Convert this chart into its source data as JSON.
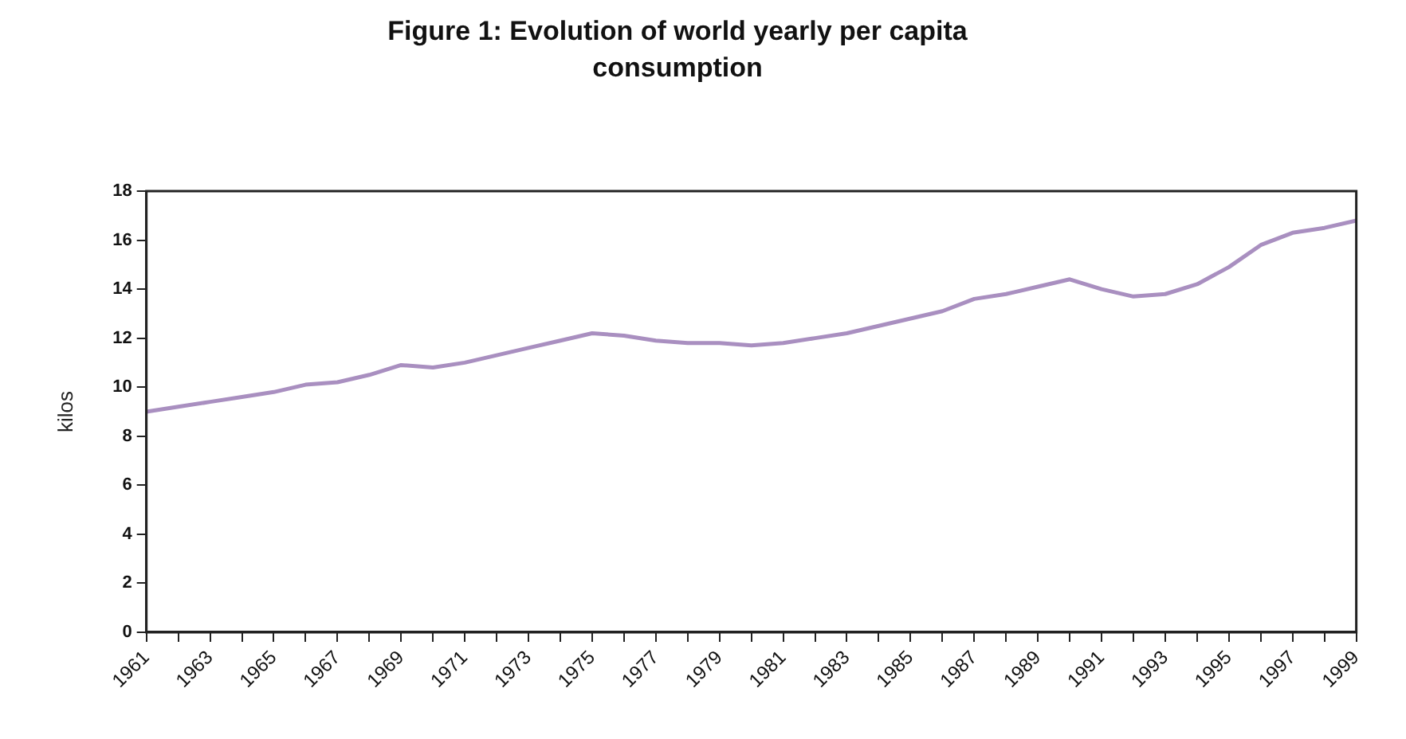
{
  "chart_data": {
    "type": "line",
    "title": "Figure 1: Evolution of world yearly per capita consumption",
    "ylabel": "kilos",
    "x": [
      1961,
      1962,
      1963,
      1964,
      1965,
      1966,
      1967,
      1968,
      1969,
      1970,
      1971,
      1972,
      1973,
      1974,
      1975,
      1976,
      1977,
      1978,
      1979,
      1980,
      1981,
      1982,
      1983,
      1984,
      1985,
      1986,
      1987,
      1988,
      1989,
      1990,
      1991,
      1992,
      1993,
      1994,
      1995,
      1996,
      1997,
      1998,
      1999
    ],
    "series": [
      {
        "color": "#a98fc0",
        "values": [
          9.0,
          9.2,
          9.4,
          9.6,
          9.8,
          10.1,
          10.2,
          10.5,
          10.9,
          10.8,
          11.0,
          11.3,
          11.6,
          11.9,
          12.2,
          12.1,
          11.9,
          11.8,
          11.8,
          11.7,
          11.8,
          12.0,
          12.2,
          12.5,
          12.8,
          13.1,
          13.6,
          13.8,
          14.1,
          14.4,
          14.0,
          13.7,
          13.8,
          14.2,
          14.9,
          15.8,
          16.3,
          16.5,
          16.8
        ]
      }
    ],
    "xlim": [
      1961,
      1999
    ],
    "xticks": [
      1961,
      {
        "value": 1962,
        "label": null
      },
      1963,
      {
        "value": 1964,
        "label": null
      },
      1965,
      {
        "value": 1966,
        "label": null
      },
      1967,
      {
        "value": 1968,
        "label": null
      },
      1969,
      {
        "value": 1970,
        "label": null
      },
      1971,
      {
        "value": 1972,
        "label": null
      },
      1973,
      {
        "value": 1974,
        "label": null
      },
      1975,
      {
        "value": 1976,
        "label": null
      },
      1977,
      {
        "value": 1978,
        "label": null
      },
      1979,
      {
        "value": 1980,
        "label": null
      },
      1981,
      {
        "value": 1982,
        "label": null
      },
      1983,
      {
        "value": 1984,
        "label": null
      },
      1985,
      {
        "value": 1986,
        "label": null
      },
      1987,
      {
        "value": 1988,
        "label": null
      },
      1989,
      {
        "value": 1990,
        "label": null
      },
      1991,
      {
        "value": 1992,
        "label": null
      },
      1993,
      {
        "value": 1994,
        "label": null
      },
      1995,
      {
        "value": 1996,
        "label": null
      },
      1997,
      {
        "value": 1998,
        "label": null
      },
      1999
    ],
    "ylim": [
      0,
      18
    ],
    "yticks": [
      0,
      2,
      4,
      6,
      8,
      10,
      12,
      14,
      16,
      18
    ],
    "grid": false,
    "legend": false,
    "marker": "none",
    "line_style": "solid"
  }
}
